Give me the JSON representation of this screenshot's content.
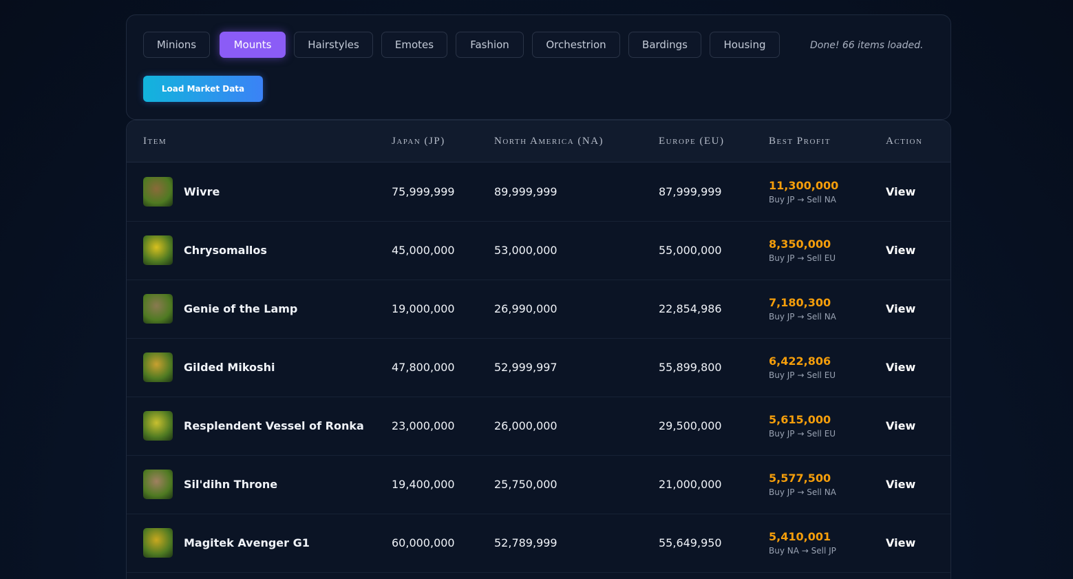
{
  "tabs": [
    "Minions",
    "Mounts",
    "Hairstyles",
    "Emotes",
    "Fashion",
    "Orchestrion",
    "Bardings",
    "Housing"
  ],
  "active_tab": "Mounts",
  "status": "Done! 66 items loaded.",
  "load_button": "Load Market Data",
  "table": {
    "headers": [
      "Item",
      "Japan (JP)",
      "North America (NA)",
      "Europe (EU)",
      "Best Profit",
      "Action"
    ],
    "rows": [
      [
        "Wivre",
        "75,999,999",
        "89,999,999",
        "87,999,999",
        "11,300,000",
        "Buy JP → Sell NA",
        "View"
      ],
      [
        "Chrysomallos",
        "45,000,000",
        "53,000,000",
        "55,000,000",
        "8,350,000",
        "Buy JP → Sell EU",
        "View"
      ],
      [
        "Genie of the Lamp",
        "19,000,000",
        "26,990,000",
        "22,854,986",
        "7,180,300",
        "Buy JP → Sell NA",
        "View"
      ],
      [
        "Gilded Mikoshi",
        "47,800,000",
        "52,999,997",
        "55,899,800",
        "6,422,806",
        "Buy JP → Sell EU",
        "View"
      ],
      [
        "Resplendent Vessel of Ronka",
        "23,000,000",
        "26,000,000",
        "29,500,000",
        "5,615,000",
        "Buy JP → Sell EU",
        "View"
      ],
      [
        "Sil'dihn Throne",
        "19,400,000",
        "25,750,000",
        "21,000,000",
        "5,577,500",
        "Buy JP → Sell NA",
        "View"
      ],
      [
        "Magitek Avenger G1",
        "60,000,000",
        "52,789,999",
        "55,649,950",
        "5,410,001",
        "Buy NA → Sell JP",
        "View"
      ]
    ]
  }
}
